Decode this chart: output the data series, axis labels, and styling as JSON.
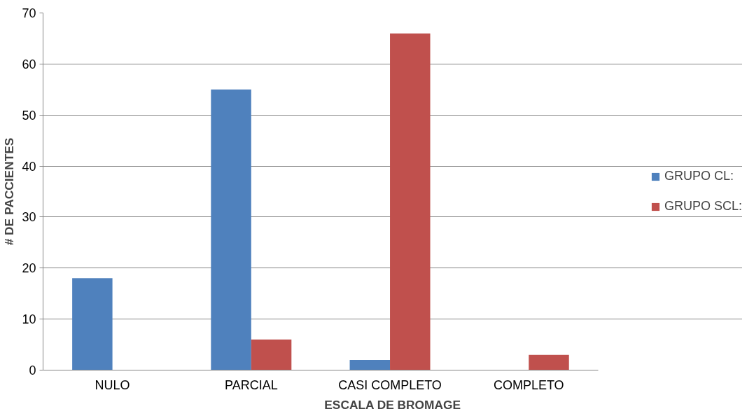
{
  "chart_data": {
    "type": "bar",
    "xlabel": "ESCALA DE BROMAGE",
    "ylabel": "# DE PACCIENTES",
    "categories": [
      "NULO",
      "PARCIAL",
      "CASI COMPLETO",
      "COMPLETO"
    ],
    "series": [
      {
        "name": "GRUPO CL:",
        "color": "#4f81bd",
        "values": [
          18,
          55,
          2,
          0
        ]
      },
      {
        "name": "GRUPO SCL:",
        "color": "#c0504d",
        "values": [
          0,
          6,
          66,
          3
        ]
      }
    ],
    "ylim": [
      0,
      70
    ],
    "yticks": [
      0,
      10,
      20,
      30,
      40,
      50,
      60,
      70
    ],
    "grid": "y",
    "legend": "right"
  }
}
